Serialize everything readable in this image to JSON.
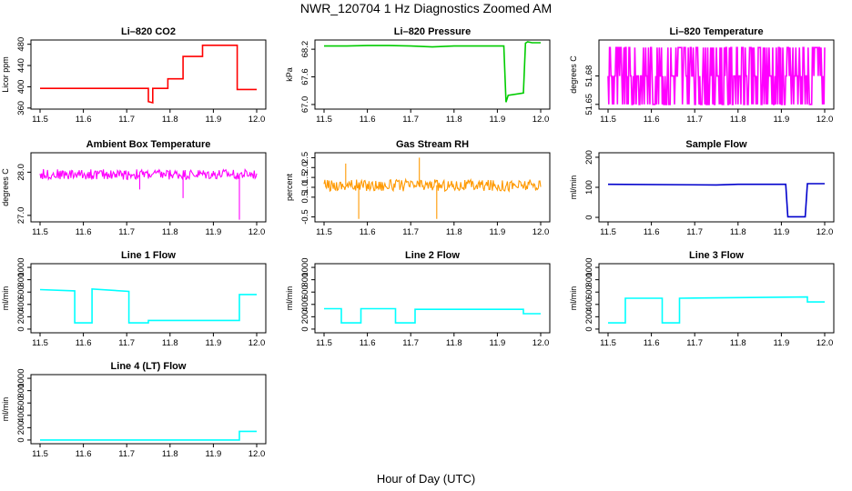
{
  "figure": {
    "title": "NWR_120704  1 Hz Diagnostics Zoomed AM",
    "xlabel": "Hour of Day (UTC)"
  },
  "chart_data": [
    {
      "type": "line",
      "title": "Li–820 CO2",
      "ylabel": "Licor ppm",
      "color": "#ff0000",
      "xlim": [
        11.5,
        12.0
      ],
      "xticks": [
        "11.5",
        "11.6",
        "11.7",
        "11.8",
        "11.9",
        "12.0"
      ],
      "ylim": [
        358,
        488
      ],
      "yticks": [
        360,
        400,
        440,
        480
      ],
      "ytick_labels": [
        "360",
        "400",
        "440",
        "480"
      ],
      "series": [
        {
          "x": [
            11.5,
            11.75,
            11.75,
            11.76,
            11.76,
            11.795,
            11.795,
            11.83,
            11.83,
            11.875,
            11.875,
            11.955,
            11.955,
            12.0
          ],
          "y": [
            397,
            397,
            372,
            370,
            397,
            397,
            415,
            415,
            457,
            457,
            478,
            478,
            395,
            395
          ]
        }
      ]
    },
    {
      "type": "line",
      "title": "Li–820 Pressure",
      "ylabel": "kPa",
      "color": "#00cc00",
      "xlim": [
        11.5,
        12.0
      ],
      "xticks": [
        "11.5",
        "11.6",
        "11.7",
        "11.8",
        "11.9",
        "12.0"
      ],
      "ylim": [
        66.9,
        68.4
      ],
      "yticks": [
        67.0,
        67.6,
        68.2
      ],
      "ytick_labels": [
        "67.0",
        "67.6",
        "68.2"
      ],
      "series": [
        {
          "x": [
            11.5,
            11.55,
            11.6,
            11.65,
            11.7,
            11.75,
            11.8,
            11.85,
            11.9,
            11.915,
            11.92,
            11.925,
            11.96,
            11.965,
            11.97,
            11.98,
            12.0
          ],
          "y": [
            68.27,
            68.27,
            68.28,
            68.28,
            68.27,
            68.25,
            68.27,
            68.27,
            68.27,
            68.27,
            67.05,
            67.2,
            67.25,
            68.33,
            68.36,
            68.34,
            68.34
          ]
        }
      ]
    },
    {
      "type": "line",
      "title": "Li–820 Temperature",
      "ylabel": "degrees C",
      "color": "#ff00ff",
      "xlim": [
        11.5,
        12.0
      ],
      "xticks": [
        "11.5",
        "11.6",
        "11.7",
        "11.8",
        "11.9",
        "12.0"
      ],
      "ylim": [
        51.645,
        51.718
      ],
      "yticks": [
        51.65,
        51.68
      ],
      "ytick_labels": [
        "51.65",
        "51.68"
      ],
      "levels": [
        51.65,
        51.68,
        51.71
      ],
      "series": [
        {
          "name": "",
          "x": [
            11.5,
            12.0
          ],
          "y": [
            51.65,
            51.71
          ]
        }
      ]
    },
    {
      "type": "line",
      "title": "Ambient Box Temperature",
      "ylabel": "degrees C",
      "color": "#ff00ff",
      "xlim": [
        11.5,
        12.0
      ],
      "xticks": [
        "11.5",
        "11.6",
        "11.7",
        "11.8",
        "11.9",
        "12.0"
      ],
      "ylim": [
        26.85,
        28.45
      ],
      "yticks": [
        27.0,
        28.0
      ],
      "ytick_labels": [
        "27.0",
        "28.0"
      ],
      "noise": {
        "center": 27.95,
        "spread": 0.12,
        "spikes": [
          [
            11.96,
            26.9
          ],
          [
            11.83,
            27.4
          ],
          [
            11.73,
            27.6
          ]
        ]
      }
    },
    {
      "type": "line",
      "title": "Gas Stream RH",
      "ylabel": "percent",
      "color": "#ff9900",
      "xlim": [
        11.5,
        12.0
      ],
      "xticks": [
        "11.5",
        "11.6",
        "11.7",
        "11.8",
        "11.9",
        "12.0"
      ],
      "ylim": [
        -0.75,
        2.75
      ],
      "yticks": [
        -0.5,
        0.5,
        1.0,
        1.5,
        2.0,
        2.5
      ],
      "ytick_labels": [
        "-0.5",
        "0.5",
        "1.0",
        "1.5",
        "2.0",
        "2.5"
      ],
      "noise": {
        "center": 1.1,
        "spread": 0.3,
        "spikes": [
          [
            11.58,
            -0.6
          ],
          [
            11.76,
            -0.6
          ],
          [
            11.72,
            2.5
          ],
          [
            11.55,
            2.2
          ]
        ]
      }
    },
    {
      "type": "line",
      "title": "Sample Flow",
      "ylabel": "ml/min",
      "color": "#0000cc",
      "xlim": [
        11.5,
        12.0
      ],
      "xticks": [
        "11.5",
        "11.6",
        "11.7",
        "11.8",
        "11.9",
        "12.0"
      ],
      "ylim": [
        -15,
        215
      ],
      "yticks": [
        0,
        100,
        200
      ],
      "ytick_labels": [
        "0",
        "100",
        "200"
      ],
      "series": [
        {
          "x": [
            11.5,
            11.75,
            11.8,
            11.91,
            11.915,
            11.955,
            11.96,
            12.0
          ],
          "y": [
            110,
            108,
            110,
            110,
            2,
            2,
            112,
            112
          ]
        }
      ]
    },
    {
      "type": "line",
      "title": "Line 1 Flow",
      "ylabel": "ml/min",
      "color": "#00ffff",
      "xlim": [
        11.5,
        12.0
      ],
      "xticks": [
        "11.5",
        "11.6",
        "11.7",
        "11.8",
        "11.9",
        "12.0"
      ],
      "ylim": [
        -60,
        1060
      ],
      "yticks": [
        0,
        200,
        400,
        600,
        800,
        1000
      ],
      "ytick_labels": [
        "0",
        "200",
        "400",
        "600",
        "800",
        "1000"
      ],
      "series": [
        {
          "x": [
            11.5,
            11.58,
            11.58,
            11.62,
            11.62,
            11.705,
            11.705,
            11.75,
            11.75,
            11.96,
            11.96,
            12.0
          ],
          "y": [
            640,
            620,
            100,
            100,
            650,
            610,
            100,
            100,
            140,
            140,
            560,
            560
          ]
        }
      ]
    },
    {
      "type": "line",
      "title": "Line 2 Flow",
      "ylabel": "ml/min",
      "color": "#00ffff",
      "xlim": [
        11.5,
        12.0
      ],
      "xticks": [
        "11.5",
        "11.6",
        "11.7",
        "11.8",
        "11.9",
        "12.0"
      ],
      "ylim": [
        -60,
        1060
      ],
      "yticks": [
        0,
        200,
        400,
        600,
        800,
        1000
      ],
      "ytick_labels": [
        "0",
        "200",
        "400",
        "600",
        "800",
        "1000"
      ],
      "series": [
        {
          "x": [
            11.5,
            11.54,
            11.54,
            11.585,
            11.585,
            11.665,
            11.665,
            11.71,
            11.71,
            11.96,
            11.96,
            12.0
          ],
          "y": [
            330,
            330,
            100,
            100,
            330,
            330,
            100,
            100,
            320,
            320,
            250,
            250
          ]
        }
      ]
    },
    {
      "type": "line",
      "title": "Line 3 Flow",
      "ylabel": "ml/min",
      "color": "#00ffff",
      "xlim": [
        11.5,
        12.0
      ],
      "xticks": [
        "11.5",
        "11.6",
        "11.7",
        "11.8",
        "11.9",
        "12.0"
      ],
      "ylim": [
        -60,
        1060
      ],
      "yticks": [
        0,
        200,
        400,
        600,
        800,
        1000
      ],
      "ytick_labels": [
        "0",
        "200",
        "400",
        "600",
        "800",
        "1000"
      ],
      "series": [
        {
          "x": [
            11.5,
            11.54,
            11.54,
            11.625,
            11.625,
            11.665,
            11.665,
            11.96,
            11.96,
            12.0
          ],
          "y": [
            100,
            100,
            500,
            500,
            100,
            100,
            500,
            520,
            440,
            440
          ]
        }
      ]
    },
    {
      "type": "line",
      "title": "Line 4 (LT) Flow",
      "ylabel": "ml/min",
      "color": "#00ffff",
      "xlim": [
        11.5,
        12.0
      ],
      "xticks": [
        "11.5",
        "11.6",
        "11.7",
        "11.8",
        "11.9",
        "12.0"
      ],
      "ylim": [
        -60,
        1060
      ],
      "yticks": [
        0,
        200,
        400,
        600,
        800,
        1000
      ],
      "ytick_labels": [
        "0",
        "200",
        "400",
        "600",
        "800",
        "1000"
      ],
      "series": [
        {
          "x": [
            11.5,
            11.96,
            11.96,
            12.0
          ],
          "y": [
            0,
            0,
            140,
            140
          ]
        }
      ]
    }
  ]
}
